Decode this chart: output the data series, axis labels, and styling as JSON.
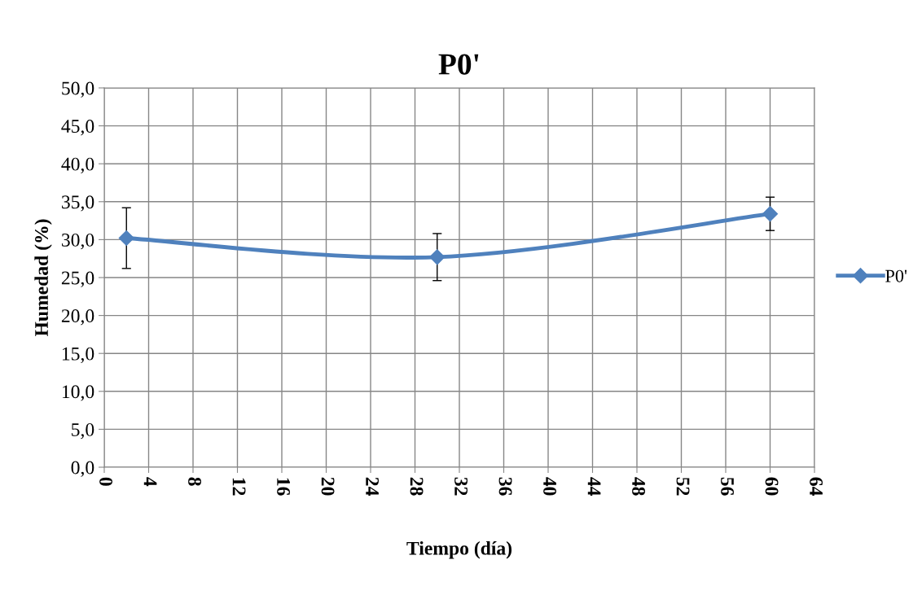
{
  "chart_data": {
    "type": "line",
    "title": "P0'",
    "xlabel": "Tiempo (día)",
    "ylabel": "Humedad (%)",
    "x": [
      2,
      30,
      60
    ],
    "series": [
      {
        "name": "P0'",
        "color": "#4f81bd",
        "values": [
          30.2,
          27.7,
          33.4
        ],
        "errors": [
          4.0,
          3.1,
          2.2
        ]
      }
    ],
    "xlim": [
      0,
      64
    ],
    "xticks": [
      0,
      4,
      8,
      12,
      16,
      20,
      24,
      28,
      32,
      36,
      40,
      44,
      48,
      52,
      56,
      60,
      64
    ],
    "ylim": [
      0,
      50
    ],
    "yticks": [
      {
        "value": 0,
        "label": "0,0"
      },
      {
        "value": 5,
        "label": "5,0"
      },
      {
        "value": 10,
        "label": "10,0"
      },
      {
        "value": 15,
        "label": "15,0"
      },
      {
        "value": 20,
        "label": "20,0"
      },
      {
        "value": 25,
        "label": "25,0"
      },
      {
        "value": 30,
        "label": "30,0"
      },
      {
        "value": 35,
        "label": "35,0"
      },
      {
        "value": 40,
        "label": "40,0"
      },
      {
        "value": 45,
        "label": "45,0"
      },
      {
        "value": 50,
        "label": "50,0"
      }
    ],
    "grid": true,
    "legend": "right",
    "marker": "diamond",
    "line_style": "solid"
  }
}
